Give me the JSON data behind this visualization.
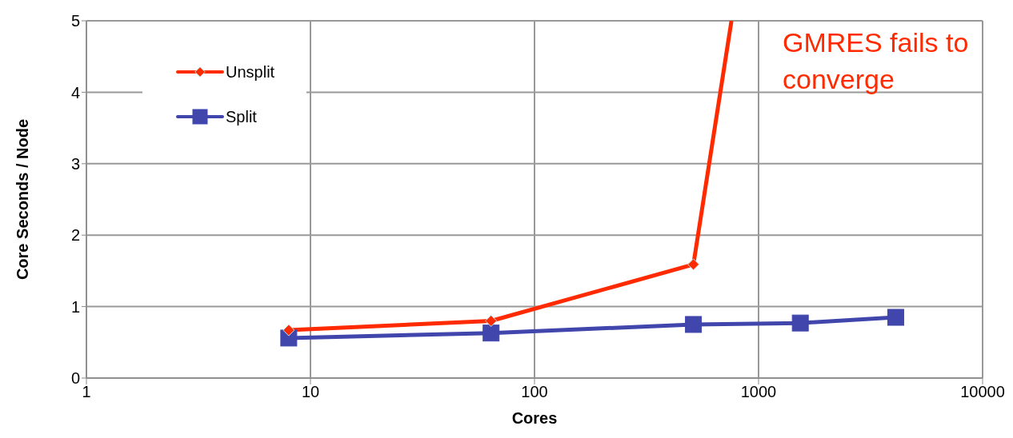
{
  "chart_data": {
    "type": "line",
    "xlabel": "Cores",
    "ylabel": "Core Seconds / Node",
    "log": "x",
    "xlim": [
      1,
      10000
    ],
    "xticks": [
      1,
      10,
      100,
      1000,
      10000
    ],
    "ylim": [
      0,
      5
    ],
    "yticks": [
      0,
      1,
      2,
      3,
      4,
      5
    ],
    "grid": true,
    "legend": "top left",
    "line_style": "solid",
    "annotations": [
      "GMRES fails to converge"
    ],
    "x": [
      8,
      64,
      512,
      1536,
      4096
    ],
    "series": [
      {
        "name": "Unsplit",
        "color": "#ff2a00",
        "marker": "diamond",
        "x": [
          8,
          64,
          512,
          757
        ],
        "values": [
          0.67,
          0.8,
          1.59,
          5
        ]
      },
      {
        "name": "Split",
        "color": "#4146ad",
        "marker": "square",
        "values": [
          0.56,
          0.63,
          0.75,
          0.77,
          0.85
        ]
      }
    ]
  }
}
